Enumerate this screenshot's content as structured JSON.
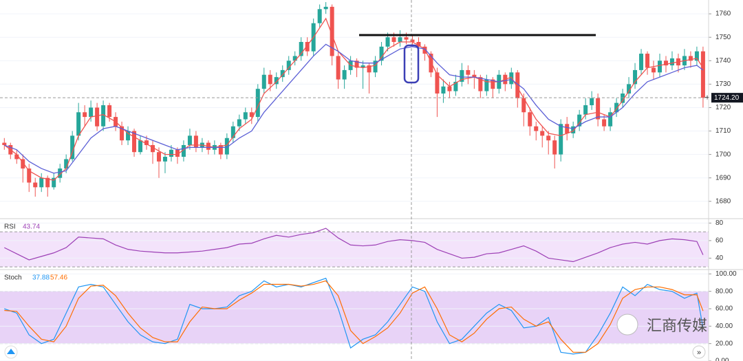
{
  "chart_data": [
    {
      "type": "candlestick",
      "up_color": "#26a69a",
      "down_color": "#ef5350",
      "xlim": [
        -0.7,
        113.9
      ],
      "ylim": [
        1672.6,
        1765.9
      ],
      "yticks": [
        1680,
        1690,
        1700,
        1710,
        1720,
        1730,
        1740,
        1750,
        1760
      ],
      "price_label": {
        "value": 1724.2,
        "label": "1724.20"
      },
      "candles": [
        [
          1705,
          1707,
          1702,
          1704
        ],
        [
          1704,
          1705,
          1698,
          1700
        ],
        [
          1700,
          1702,
          1696,
          1698
        ],
        [
          1698,
          1700,
          1688,
          1694
        ],
        [
          1694,
          1696,
          1684,
          1688
        ],
        [
          1688,
          1690,
          1682,
          1686
        ],
        [
          1686,
          1692,
          1684,
          1690
        ],
        [
          1690,
          1691,
          1682,
          1686
        ],
        [
          1686,
          1692,
          1685,
          1690
        ],
        [
          1690,
          1696,
          1688,
          1694
        ],
        [
          1694,
          1700,
          1692,
          1698
        ],
        [
          1698,
          1710,
          1697,
          1708
        ],
        [
          1708,
          1722,
          1706,
          1718
        ],
        [
          1718,
          1721,
          1712,
          1716
        ],
        [
          1716,
          1723,
          1714,
          1720
        ],
        [
          1720,
          1722,
          1710,
          1712
        ],
        [
          1712,
          1723,
          1710,
          1721
        ],
        [
          1721,
          1722,
          1714,
          1716
        ],
        [
          1716,
          1718,
          1710,
          1712
        ],
        [
          1712,
          1714,
          1704,
          1706
        ],
        [
          1706,
          1712,
          1704,
          1710
        ],
        [
          1710,
          1711,
          1699,
          1701
        ],
        [
          1701,
          1708,
          1700,
          1706
        ],
        [
          1706,
          1708,
          1702,
          1704
        ],
        [
          1704,
          1706,
          1696,
          1701
        ],
        [
          1701,
          1703,
          1690,
          1697
        ],
        [
          1697,
          1701,
          1692,
          1699
        ],
        [
          1699,
          1704,
          1697,
          1702
        ],
        [
          1702,
          1703,
          1696,
          1699
        ],
        [
          1699,
          1706,
          1697,
          1704
        ],
        [
          1704,
          1711,
          1702,
          1708
        ],
        [
          1708,
          1710,
          1701,
          1703
        ],
        [
          1703,
          1707,
          1701,
          1705
        ],
        [
          1705,
          1706,
          1700,
          1702
        ],
        [
          1702,
          1706,
          1700,
          1704
        ],
        [
          1704,
          1705,
          1698,
          1700
        ],
        [
          1700,
          1709,
          1698,
          1707
        ],
        [
          1707,
          1714,
          1705,
          1712
        ],
        [
          1712,
          1717,
          1710,
          1715
        ],
        [
          1715,
          1720,
          1713,
          1718
        ],
        [
          1718,
          1720,
          1713,
          1716
        ],
        [
          1716,
          1730,
          1714,
          1728
        ],
        [
          1728,
          1737,
          1726,
          1734
        ],
        [
          1734,
          1736,
          1727,
          1730
        ],
        [
          1730,
          1735,
          1728,
          1733
        ],
        [
          1733,
          1738,
          1731,
          1736
        ],
        [
          1736,
          1742,
          1734,
          1740
        ],
        [
          1740,
          1744,
          1738,
          1742
        ],
        [
          1742,
          1750,
          1740,
          1748
        ],
        [
          1748,
          1750,
          1742,
          1744
        ],
        [
          1744,
          1758,
          1742,
          1756
        ],
        [
          1756,
          1764,
          1754,
          1762
        ],
        [
          1762,
          1765,
          1760,
          1763
        ],
        [
          1763,
          1764,
          1738,
          1742
        ],
        [
          1742,
          1744,
          1728,
          1732
        ],
        [
          1732,
          1738,
          1728,
          1736
        ],
        [
          1736,
          1742,
          1734,
          1740
        ],
        [
          1740,
          1741,
          1733,
          1737
        ],
        [
          1737,
          1740,
          1728,
          1738
        ],
        [
          1738,
          1739,
          1726,
          1735
        ],
        [
          1735,
          1742,
          1733,
          1740
        ],
        [
          1740,
          1748,
          1738,
          1746
        ],
        [
          1746,
          1752,
          1744,
          1750
        ],
        [
          1750,
          1752,
          1746,
          1748
        ],
        [
          1748,
          1753,
          1746,
          1750
        ],
        [
          1750,
          1752,
          1747,
          1749
        ],
        [
          1749,
          1751,
          1746,
          1748
        ],
        [
          1748,
          1750,
          1744,
          1746
        ],
        [
          1746,
          1747,
          1740,
          1743
        ],
        [
          1743,
          1744,
          1733,
          1735
        ],
        [
          1735,
          1737,
          1716,
          1726
        ],
        [
          1726,
          1732,
          1722,
          1729
        ],
        [
          1729,
          1731,
          1724,
          1727
        ],
        [
          1727,
          1734,
          1725,
          1731
        ],
        [
          1731,
          1739,
          1729,
          1736
        ],
        [
          1736,
          1738,
          1730,
          1734
        ],
        [
          1734,
          1736,
          1728,
          1733
        ],
        [
          1733,
          1734,
          1724,
          1727
        ],
        [
          1727,
          1734,
          1725,
          1732
        ],
        [
          1732,
          1733,
          1724,
          1728
        ],
        [
          1728,
          1736,
          1726,
          1734
        ],
        [
          1734,
          1735,
          1727,
          1730
        ],
        [
          1730,
          1737,
          1728,
          1735
        ],
        [
          1735,
          1736,
          1720,
          1724
        ],
        [
          1724,
          1726,
          1712,
          1718
        ],
        [
          1718,
          1720,
          1708,
          1712
        ],
        [
          1712,
          1714,
          1706,
          1710
        ],
        [
          1710,
          1712,
          1703,
          1708
        ],
        [
          1708,
          1710,
          1700,
          1706
        ],
        [
          1706,
          1708,
          1694,
          1700
        ],
        [
          1700,
          1715,
          1697,
          1713
        ],
        [
          1713,
          1716,
          1706,
          1709
        ],
        [
          1709,
          1714,
          1707,
          1712
        ],
        [
          1712,
          1719,
          1710,
          1717
        ],
        [
          1717,
          1724,
          1715,
          1721
        ],
        [
          1721,
          1727,
          1719,
          1724
        ],
        [
          1724,
          1726,
          1712,
          1715
        ],
        [
          1715,
          1717,
          1710,
          1712
        ],
        [
          1712,
          1720,
          1710,
          1718
        ],
        [
          1718,
          1724,
          1716,
          1722
        ],
        [
          1722,
          1728,
          1720,
          1726
        ],
        [
          1726,
          1733,
          1724,
          1730
        ],
        [
          1730,
          1739,
          1728,
          1736
        ],
        [
          1736,
          1745,
          1734,
          1743
        ],
        [
          1743,
          1744,
          1734,
          1737
        ],
        [
          1737,
          1740,
          1732,
          1735
        ],
        [
          1735,
          1743,
          1733,
          1740
        ],
        [
          1740,
          1742,
          1735,
          1738
        ],
        [
          1738,
          1744,
          1736,
          1741
        ],
        [
          1741,
          1743,
          1735,
          1738
        ],
        [
          1738,
          1745,
          1736,
          1742
        ],
        [
          1742,
          1744,
          1737,
          1740
        ],
        [
          1740,
          1746,
          1738,
          1744
        ],
        [
          1744,
          1746,
          1720,
          1724.2
        ]
      ],
      "overlay_x": [
        0,
        2,
        4,
        6,
        8,
        10,
        12,
        14,
        16,
        18,
        20,
        22,
        24,
        26,
        28,
        30,
        32,
        34,
        36,
        38,
        40,
        42,
        44,
        46,
        48,
        50,
        52,
        54,
        56,
        58,
        60,
        62,
        64,
        66,
        68,
        70,
        72,
        74,
        76,
        78,
        80,
        82,
        84,
        86,
        88,
        90,
        92,
        94,
        96,
        98,
        100,
        102,
        104,
        106,
        108,
        110,
        112,
        113
      ],
      "series": [
        {
          "color": "#ef5350",
          "values": [
            1704,
            1700,
            1693,
            1690,
            1689,
            1694,
            1708,
            1716,
            1717,
            1714,
            1709,
            1706,
            1703,
            1700,
            1700,
            1704,
            1704,
            1703,
            1704,
            1711,
            1715,
            1726,
            1731,
            1737,
            1743,
            1750,
            1758,
            1744,
            1738,
            1737,
            1738,
            1745,
            1748,
            1748,
            1745,
            1734,
            1729,
            1732,
            1733,
            1731,
            1731,
            1733,
            1724,
            1715,
            1709,
            1708,
            1710,
            1717,
            1718,
            1716,
            1723,
            1731,
            1737,
            1738,
            1739,
            1740,
            1741,
            1737
          ]
        },
        {
          "color": "#5b5fd6",
          "values": [
            1704,
            1702,
            1697,
            1694,
            1692,
            1693,
            1700,
            1707,
            1711,
            1712,
            1710,
            1708,
            1706,
            1704,
            1702,
            1703,
            1703,
            1703,
            1703,
            1707,
            1710,
            1718,
            1724,
            1730,
            1736,
            1742,
            1747,
            1744,
            1740,
            1739,
            1739,
            1742,
            1745,
            1746,
            1745,
            1739,
            1734,
            1733,
            1733,
            1732,
            1731,
            1732,
            1728,
            1721,
            1715,
            1712,
            1711,
            1714,
            1716,
            1716,
            1720,
            1726,
            1731,
            1733,
            1735,
            1737,
            1738,
            1736
          ]
        }
      ]
    },
    {
      "type": "line",
      "title": "RSI",
      "xlim": [
        -0.7,
        113.9
      ],
      "ylim": [
        27,
        85
      ],
      "yticks": [
        40,
        60,
        80
      ],
      "band": [
        30,
        70
      ],
      "band_color": "#f3e3fb",
      "x": [
        0,
        2,
        4,
        6,
        8,
        10,
        12,
        14,
        16,
        18,
        20,
        22,
        24,
        26,
        28,
        30,
        32,
        34,
        36,
        38,
        40,
        42,
        44,
        46,
        48,
        50,
        52,
        54,
        56,
        58,
        60,
        62,
        64,
        66,
        68,
        70,
        72,
        74,
        76,
        78,
        80,
        82,
        84,
        86,
        88,
        90,
        92,
        94,
        96,
        98,
        100,
        102,
        104,
        106,
        108,
        110,
        112,
        113
      ],
      "series": [
        {
          "color": "#9c3fb5",
          "values": [
            52,
            45,
            38,
            42,
            46,
            52,
            64,
            63,
            62,
            55,
            50,
            48,
            47,
            46,
            46,
            47,
            48,
            50,
            52,
            56,
            57,
            62,
            66,
            64,
            67,
            69,
            74,
            63,
            55,
            54,
            55,
            59,
            61,
            60,
            58,
            50,
            45,
            40,
            41,
            45,
            46,
            50,
            54,
            48,
            40,
            38,
            36,
            41,
            46,
            52,
            56,
            58,
            56,
            60,
            62,
            61,
            59,
            43.74
          ]
        }
      ]
    },
    {
      "type": "line",
      "title": "Stoch",
      "xlim": [
        -0.7,
        113.9
      ],
      "ylim": [
        0,
        105
      ],
      "yticks": [
        {
          "value": 0,
          "label": "0.00"
        },
        {
          "value": 20,
          "label": "20.00"
        },
        {
          "value": 40,
          "label": "40.00"
        },
        {
          "value": 60,
          "label": "60.00"
        },
        {
          "value": 80,
          "label": "80.00"
        },
        {
          "value": 100,
          "label": "100.00"
        }
      ],
      "band": [
        20,
        80
      ],
      "band_color": "#e8d3f7",
      "x": [
        0,
        2,
        4,
        6,
        8,
        10,
        12,
        14,
        16,
        18,
        20,
        22,
        24,
        26,
        28,
        30,
        32,
        34,
        36,
        38,
        40,
        42,
        44,
        46,
        48,
        50,
        52,
        54,
        56,
        58,
        60,
        62,
        64,
        66,
        68,
        70,
        72,
        74,
        76,
        78,
        80,
        82,
        84,
        86,
        88,
        90,
        92,
        94,
        96,
        98,
        100,
        102,
        104,
        106,
        108,
        110,
        112,
        113
      ],
      "series": [
        {
          "color": "#2196f3",
          "values": [
            60,
            55,
            30,
            20,
            25,
            55,
            85,
            88,
            85,
            65,
            45,
            30,
            22,
            20,
            25,
            65,
            60,
            60,
            62,
            75,
            80,
            92,
            85,
            88,
            85,
            90,
            95,
            60,
            15,
            25,
            30,
            45,
            65,
            85,
            80,
            45,
            20,
            25,
            40,
            55,
            65,
            58,
            38,
            40,
            50,
            10,
            8,
            10,
            30,
            55,
            85,
            75,
            88,
            82,
            80,
            72,
            78,
            37.88
          ]
        },
        {
          "color": "#ff6d00",
          "values": [
            58,
            57,
            40,
            25,
            22,
            40,
            72,
            86,
            87,
            75,
            55,
            38,
            27,
            22,
            22,
            45,
            62,
            60,
            60,
            70,
            78,
            88,
            88,
            88,
            86,
            88,
            92,
            75,
            35,
            20,
            28,
            38,
            55,
            78,
            85,
            60,
            30,
            22,
            32,
            48,
            60,
            62,
            48,
            40,
            45,
            25,
            10,
            10,
            20,
            42,
            72,
            82,
            85,
            85,
            82,
            76,
            76,
            57.46
          ]
        }
      ]
    }
  ],
  "watermark": "汇商传媒"
}
